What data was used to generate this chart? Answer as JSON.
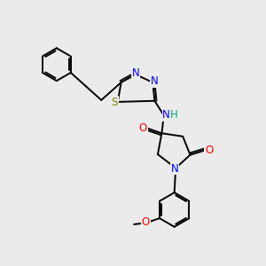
{
  "background_color": "#ebebeb",
  "bond_color": "#000000",
  "atom_colors": {
    "N": "#0000ff",
    "O": "#ff0000",
    "S": "#808000",
    "H": "#00aa88",
    "C": "#000000"
  },
  "font_size": 8.5,
  "line_width": 1.4
}
